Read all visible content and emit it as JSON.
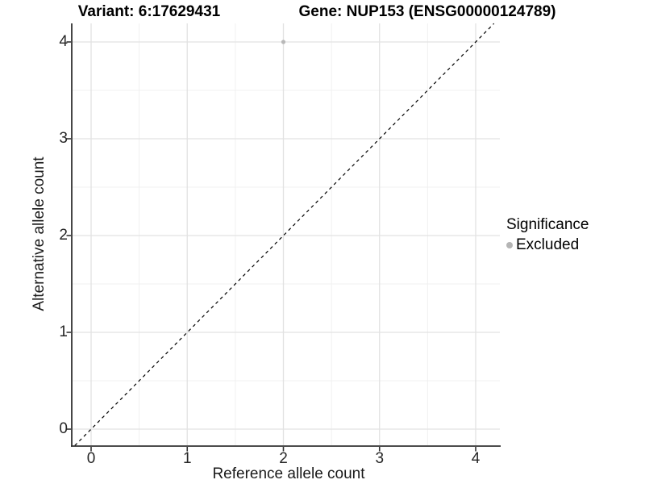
{
  "chart_data": {
    "type": "scatter",
    "title_left": "Variant: 6:17629431",
    "title_right": "Gene: NUP153 (ENSG00000124789)",
    "xlabel": "Reference allele count",
    "ylabel": "Alternative allele count",
    "xlim": [
      -0.21,
      4.25
    ],
    "ylim": [
      -0.17,
      4.19
    ],
    "x_major_ticks": [
      0,
      1,
      2,
      3,
      4
    ],
    "y_major_ticks": [
      0,
      1,
      2,
      3,
      4
    ],
    "x_minor_ticks": [
      0.5,
      1.5,
      2.5,
      3.5
    ],
    "y_minor_ticks": [
      0.5,
      1.5,
      2.5,
      3.5
    ],
    "grid": true,
    "series": [
      {
        "name": "Excluded",
        "color": "#b8b8b8",
        "points": [
          {
            "x": 2,
            "y": 4
          }
        ]
      }
    ],
    "reference_line": {
      "type": "identity",
      "slope": 1,
      "intercept": 0,
      "style": "dashed",
      "color": "#000000"
    },
    "legend": {
      "position": "right",
      "title": "Significance",
      "entries": [
        {
          "label": "Excluded",
          "color": "#b5b5b5"
        }
      ]
    },
    "colors": {
      "panel_background": "#ffffff",
      "grid_major": "#e2e2e2",
      "grid_minor": "#f0f0f0",
      "axis_line": "#333333",
      "tick_text": "#262626"
    }
  }
}
